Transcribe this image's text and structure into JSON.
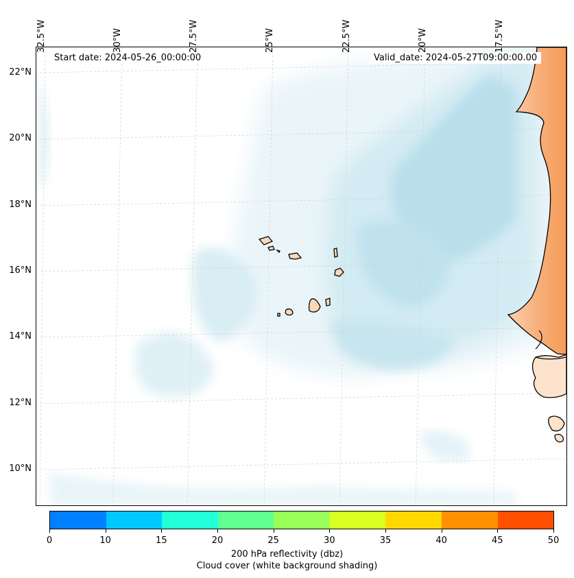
{
  "header": {
    "start_date": "Start date: 2024-05-26_00:00:00",
    "valid_date": "Valid_date: 2024-05-27T09:00:00.00"
  },
  "latitude_labels": [
    "22°N",
    "20°N",
    "18°N",
    "16°N",
    "14°N",
    "12°N",
    "10°N"
  ],
  "longitude_labels": [
    "32.5°W",
    "30°W",
    "27.5°W",
    "25°W",
    "22.5°W",
    "20°W",
    "17.5°W"
  ],
  "colorbar": {
    "ticks": [
      "0",
      "10",
      "15",
      "20",
      "25",
      "30",
      "35",
      "40",
      "45",
      "50"
    ],
    "colors": [
      "#0080ff",
      "#00c8ff",
      "#20ffd8",
      "#60ff90",
      "#98ff58",
      "#d8ff20",
      "#ffd800",
      "#ff9000",
      "#ff5000"
    ],
    "label_line1": "200 hPa reflectivity (dbz)",
    "label_line2": "Cloud cover (white background shading)"
  },
  "map_colors": {
    "cloud_light": "#e6f3f8",
    "cloud_medium": "#c4e4ef",
    "cloud_dense": "#acd8e7",
    "land": "#fbd8b8",
    "land_hot": "#f7a466",
    "coast": "#000000"
  }
}
